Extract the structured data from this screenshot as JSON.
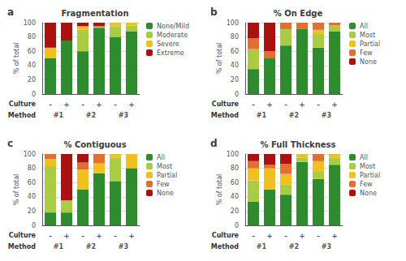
{
  "chart_data": [
    {
      "type": "bar",
      "title": "Fragmentation",
      "annotations": [
        "a"
      ],
      "categories": [
        "-",
        "+",
        "-",
        "+",
        "-",
        "+"
      ],
      "xlabel": "Culture",
      "groups": {
        "label": "Method",
        "names": [
          "#1",
          "#2",
          "#3"
        ]
      },
      "ylabel": "% of total",
      "ylim": [
        0,
        100
      ],
      "yticks": [
        0,
        20,
        40,
        60,
        80,
        100
      ],
      "stacked": true,
      "grid": true,
      "legend": "right",
      "series": [
        {
          "name": "None/Mild",
          "color": "#2e8b2e",
          "values": [
            50,
            75,
            60,
            93,
            80,
            88
          ]
        },
        {
          "name": "Moderate",
          "color": "#aacc44",
          "values": [
            0,
            0,
            30,
            2,
            15,
            8
          ]
        },
        {
          "name": "Severe",
          "color": "#f0c020",
          "values": [
            15,
            0,
            5,
            0,
            5,
            4
          ]
        },
        {
          "name": "Extreme",
          "color": "#aa1111",
          "values": [
            35,
            25,
            5,
            5,
            0,
            0
          ]
        }
      ]
    },
    {
      "type": "bar",
      "title": "% On Edge",
      "annotations": [
        "b"
      ],
      "categories": [
        "-",
        "+",
        "-",
        "+",
        "-",
        "+"
      ],
      "xlabel": "Culture",
      "groups": {
        "label": "Method",
        "names": [
          "#1",
          "#2",
          "#3"
        ]
      },
      "ylabel": "% of total",
      "ylim": [
        0,
        100
      ],
      "yticks": [
        0,
        20,
        40,
        60,
        80,
        100
      ],
      "stacked": true,
      "grid": true,
      "legend": "right",
      "series": [
        {
          "name": "All",
          "color": "#2e8b2e",
          "values": [
            35,
            50,
            68,
            91,
            65,
            88
          ]
        },
        {
          "name": "Most",
          "color": "#aacc44",
          "values": [
            28,
            0,
            23,
            0,
            20,
            8
          ]
        },
        {
          "name": "Partial",
          "color": "#f0c020",
          "values": [
            0,
            0,
            0,
            0,
            5,
            0
          ]
        },
        {
          "name": "Few",
          "color": "#e07030",
          "values": [
            15,
            10,
            9,
            9,
            10,
            4
          ]
        },
        {
          "name": "None",
          "color": "#aa1111",
          "values": [
            22,
            40,
            0,
            0,
            0,
            0
          ]
        }
      ]
    },
    {
      "type": "bar",
      "title": "% Contiguous",
      "annotations": [
        "c"
      ],
      "categories": [
        "-",
        "+",
        "-",
        "+",
        "-",
        "+"
      ],
      "xlabel": "Culture",
      "groups": {
        "label": "Method",
        "names": [
          "#1",
          "#2",
          "#3"
        ]
      },
      "ylabel": "% of total",
      "ylim": [
        0,
        100
      ],
      "yticks": [
        0,
        20,
        40,
        60,
        80,
        100
      ],
      "stacked": true,
      "grid": true,
      "legend": "right",
      "series": [
        {
          "name": "All",
          "color": "#2e8b2e",
          "values": [
            18,
            18,
            50,
            73,
            62,
            80
          ]
        },
        {
          "name": "Most",
          "color": "#aacc44",
          "values": [
            65,
            17,
            0,
            0,
            33,
            0
          ]
        },
        {
          "name": "Partial",
          "color": "#f0c020",
          "values": [
            10,
            0,
            28,
            14,
            5,
            20
          ]
        },
        {
          "name": "Few",
          "color": "#e07030",
          "values": [
            7,
            0,
            10,
            13,
            0,
            0
          ]
        },
        {
          "name": "None",
          "color": "#aa1111",
          "values": [
            0,
            65,
            12,
            0,
            0,
            0
          ]
        }
      ]
    },
    {
      "type": "bar",
      "title": "% Full Thickness",
      "annotations": [
        "d"
      ],
      "categories": [
        "-",
        "+",
        "-",
        "+",
        "-",
        "+"
      ],
      "xlabel": "Culture",
      "groups": {
        "label": "Method",
        "names": [
          "#1",
          "#2",
          "#3"
        ]
      },
      "ylabel": "% of total",
      "ylim": [
        0,
        100
      ],
      "yticks": [
        0,
        20,
        40,
        60,
        80,
        100
      ],
      "stacked": true,
      "grid": true,
      "legend": "right",
      "series": [
        {
          "name": "All",
          "color": "#2e8b2e",
          "values": [
            33,
            50,
            43,
            89,
            65,
            85
          ]
        },
        {
          "name": "Most",
          "color": "#aacc44",
          "values": [
            30,
            0,
            14,
            6,
            10,
            10
          ]
        },
        {
          "name": "Partial",
          "color": "#f0c020",
          "values": [
            17,
            30,
            15,
            5,
            15,
            5
          ]
        },
        {
          "name": "Few",
          "color": "#e07030",
          "values": [
            10,
            5,
            14,
            0,
            10,
            0
          ]
        },
        {
          "name": "None",
          "color": "#aa1111",
          "values": [
            10,
            15,
            14,
            0,
            0,
            0
          ]
        }
      ]
    }
  ]
}
